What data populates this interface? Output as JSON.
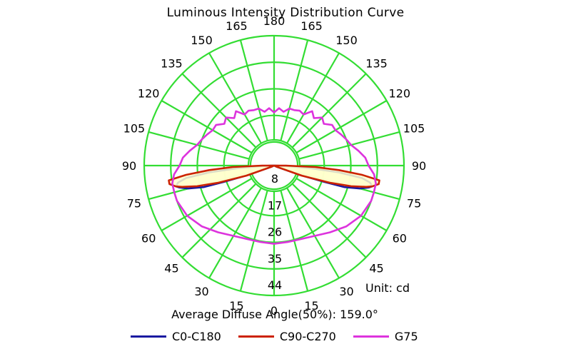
{
  "chart_data": {
    "type": "polar",
    "title": "Luminous Intensity Distribution Curve",
    "unit_label": "Unit: cd",
    "average_diffuse_angle_label": "Average Diffuse Angle(50%): 159.0°",
    "radial_ticks": [
      "8",
      "17",
      "26",
      "35",
      "44"
    ],
    "radial_max": 44,
    "angle_labels_left": [
      "0",
      "15",
      "30",
      "45",
      "60",
      "75",
      "90",
      "105",
      "120",
      "135",
      "150",
      "165",
      "180"
    ],
    "angle_labels_right": [
      "15",
      "30",
      "45",
      "60",
      "75",
      "90",
      "105",
      "120",
      "135",
      "150",
      "165"
    ],
    "grid": true,
    "grid_color": "#33dd33",
    "fill_color": "#ffffcc",
    "series": [
      {
        "name": "C0-C180",
        "color": "#1a1aa0",
        "points": [
          [
            0,
            0
          ],
          [
            60,
            0
          ],
          [
            65,
            1
          ],
          [
            70,
            9
          ],
          [
            72,
            18
          ],
          [
            73,
            25
          ],
          [
            75,
            30
          ],
          [
            77,
            33
          ],
          [
            78,
            34
          ],
          [
            80,
            33
          ],
          [
            82,
            30
          ],
          [
            84,
            22
          ],
          [
            86,
            12
          ],
          [
            88,
            4
          ],
          [
            90,
            0
          ],
          [
            92,
            0
          ],
          [
            94,
            0
          ]
        ]
      },
      {
        "name": "C90-C270",
        "color": "#cc2200",
        "points": [
          [
            0,
            0
          ],
          [
            60,
            0
          ],
          [
            65,
            1
          ],
          [
            70,
            10
          ],
          [
            73,
            20
          ],
          [
            75,
            27
          ],
          [
            77,
            32
          ],
          [
            78,
            34
          ],
          [
            80,
            36
          ],
          [
            82,
            36
          ],
          [
            84,
            30
          ],
          [
            86,
            22
          ],
          [
            88,
            14
          ],
          [
            90,
            4
          ],
          [
            92,
            0
          ],
          [
            94,
            0
          ]
        ]
      },
      {
        "name": "G75",
        "color": "#dd33dd",
        "points": [
          [
            0,
            26.5
          ],
          [
            10,
            26.3
          ],
          [
            20,
            26.5
          ],
          [
            30,
            27.5
          ],
          [
            40,
            29.5
          ],
          [
            50,
            32
          ],
          [
            60,
            34
          ],
          [
            70,
            35
          ],
          [
            75,
            35
          ],
          [
            80,
            35
          ],
          [
            85,
            34
          ],
          [
            90,
            32
          ],
          [
            95,
            31
          ],
          [
            100,
            29
          ],
          [
            105,
            27
          ],
          [
            110,
            26
          ],
          [
            115,
            25
          ],
          [
            120,
            24
          ],
          [
            125,
            24
          ],
          [
            130,
            22
          ],
          [
            135,
            23
          ],
          [
            140,
            21
          ],
          [
            145,
            22.5
          ],
          [
            150,
            20
          ],
          [
            155,
            20.5
          ],
          [
            160,
            20
          ],
          [
            165,
            20
          ],
          [
            170,
            18.5
          ],
          [
            175,
            19.5
          ],
          [
            180,
            18
          ]
        ]
      }
    ]
  }
}
